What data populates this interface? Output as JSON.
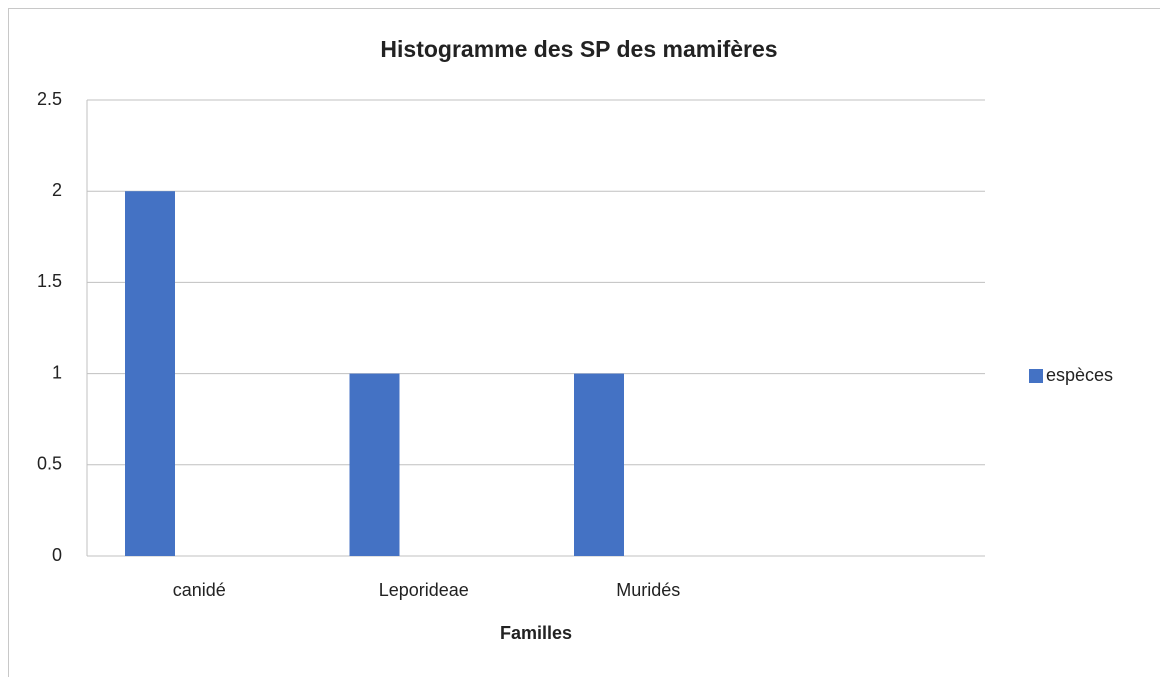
{
  "chart_data": {
    "type": "bar",
    "title": "Histogramme des SP des mamifères",
    "x_label": "Familles",
    "categories": [
      "canidé",
      "Leporideae",
      "Muridés",
      null
    ],
    "series": [
      {
        "name": "espèces",
        "color": "#4472c4",
        "values": [
          2,
          1,
          1,
          null
        ]
      }
    ],
    "ylim": [
      0,
      2.5
    ],
    "yticks": [
      0,
      0.5,
      1,
      1.5,
      2,
      2.5
    ],
    "grid": true,
    "legend": "right"
  }
}
